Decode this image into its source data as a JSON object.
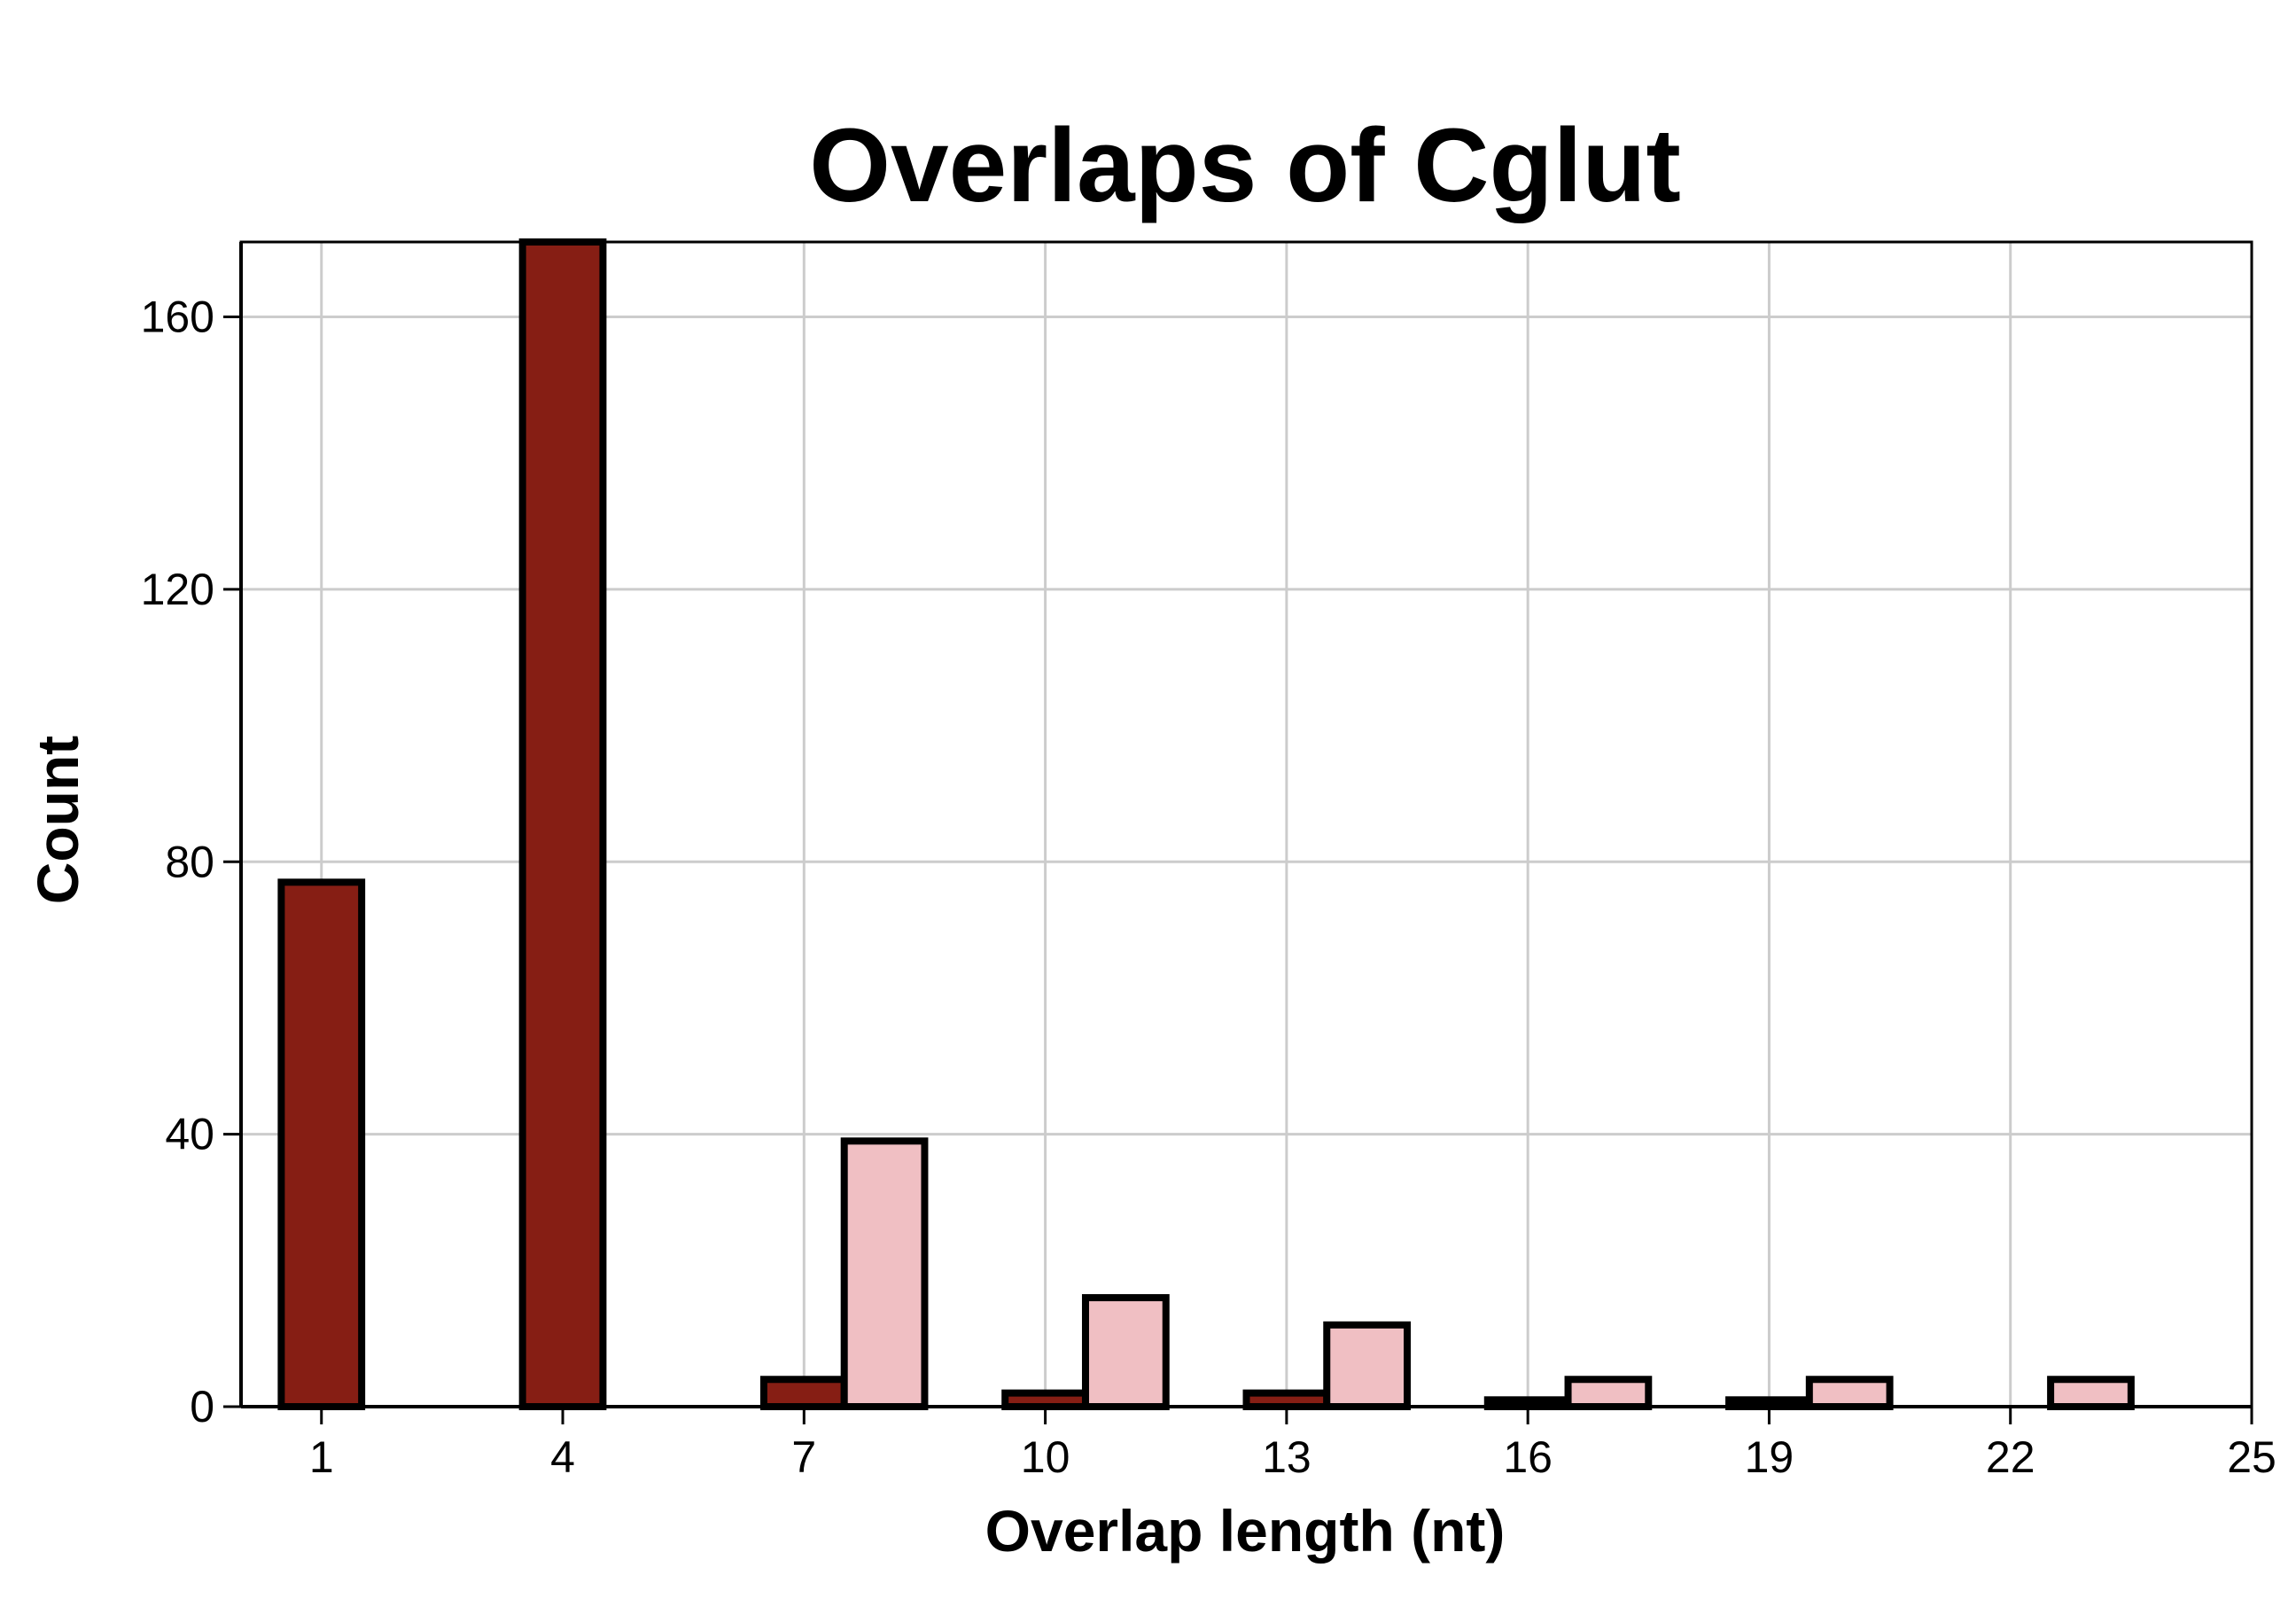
{
  "chart_data": {
    "type": "bar",
    "title": "Overlaps of Cglut",
    "xlabel": "Overlap length (nt)",
    "ylabel": "Count",
    "xlim": [
      0,
      25
    ],
    "ylim": [
      0,
      171
    ],
    "xticks": [
      1,
      4,
      7,
      10,
      13,
      16,
      19,
      22,
      25
    ],
    "yticks": [
      0,
      40,
      80,
      120,
      160
    ],
    "grid": true,
    "legend": "none",
    "bar_width": 1,
    "series": [
      {
        "color": "#861e14",
        "points": [
          {
            "x": 1,
            "y": 77
          },
          {
            "x": 4,
            "y": 171
          },
          {
            "x": 7,
            "y": 4
          },
          {
            "x": 10,
            "y": 2
          },
          {
            "x": 13,
            "y": 2
          },
          {
            "x": 16,
            "y": 1
          },
          {
            "x": 19,
            "y": 1
          },
          {
            "x": 22,
            "y": 0
          }
        ]
      },
      {
        "color": "#f0bfc3",
        "points": [
          {
            "x": 2,
            "y": 0
          },
          {
            "x": 5,
            "y": 0
          },
          {
            "x": 8,
            "y": 39
          },
          {
            "x": 11,
            "y": 16
          },
          {
            "x": 14,
            "y": 12
          },
          {
            "x": 17,
            "y": 4
          },
          {
            "x": 20,
            "y": 4
          },
          {
            "x": 23,
            "y": 4
          },
          {
            "x": 24,
            "y": 0
          }
        ]
      }
    ]
  }
}
